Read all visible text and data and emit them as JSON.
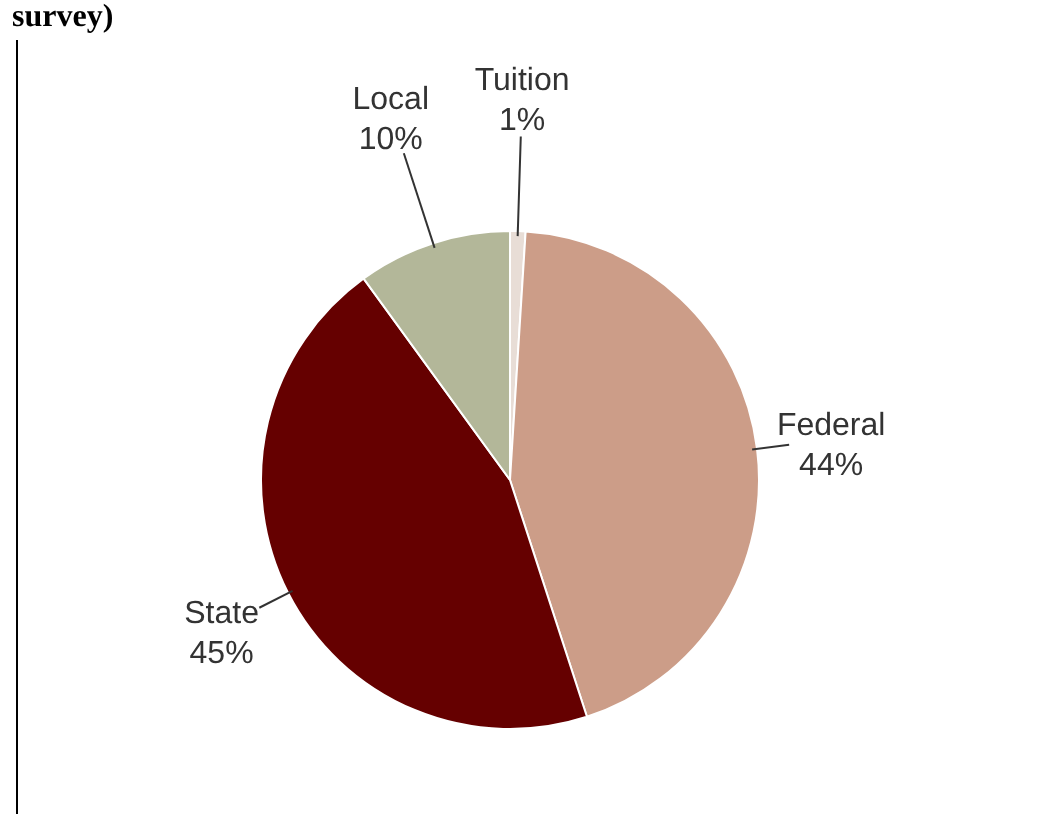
{
  "chart_data": {
    "type": "pie",
    "title": "survey)",
    "categories": [
      "Tuition",
      "Federal",
      "State",
      "Local"
    ],
    "values": [
      1,
      44,
      45,
      10
    ],
    "colors": [
      "#e8ddd6",
      "#cc9d88",
      "#650000",
      "#b3b799"
    ],
    "value_labels": [
      "1%",
      "44%",
      "45%",
      "10%"
    ],
    "legend": false
  }
}
